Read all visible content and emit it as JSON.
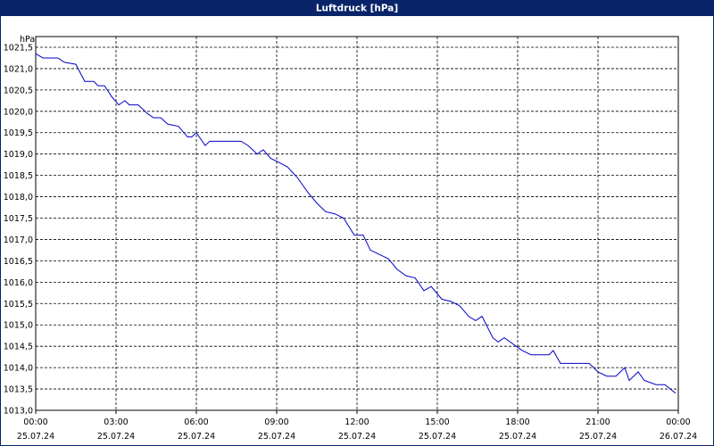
{
  "chart_data": {
    "type": "line",
    "title": "Luftdruck [hPa]",
    "y_label": "hPa",
    "xlim": [
      0,
      24
    ],
    "ylim": [
      1013.0,
      1021.75
    ],
    "grid": true,
    "xticks": [
      {
        "value": 0,
        "label": "00:00"
      },
      {
        "value": 3,
        "label": "03:00"
      },
      {
        "value": 6,
        "label": "06:00"
      },
      {
        "value": 9,
        "label": "09:00"
      },
      {
        "value": 12,
        "label": "12:00"
      },
      {
        "value": 15,
        "label": "15:00"
      },
      {
        "value": 18,
        "label": "18:00"
      },
      {
        "value": 21,
        "label": "21:00"
      },
      {
        "value": 24,
        "label": "00:00"
      }
    ],
    "xtick_dates": [
      "25.07.24",
      "25.07.24",
      "25.07.24",
      "25.07.24",
      "25.07.24",
      "25.07.24",
      "25.07.24",
      "25.07.24",
      "26.07.24"
    ],
    "yticks": [
      {
        "value": 1013.0,
        "label": "1013,0"
      },
      {
        "value": 1013.5,
        "label": "1013,5"
      },
      {
        "value": 1014.0,
        "label": "1014,0"
      },
      {
        "value": 1014.5,
        "label": "1014,5"
      },
      {
        "value": 1015.0,
        "label": "1015,0"
      },
      {
        "value": 1015.5,
        "label": "1015,5"
      },
      {
        "value": 1016.0,
        "label": "1016,0"
      },
      {
        "value": 1016.5,
        "label": "1016,5"
      },
      {
        "value": 1017.0,
        "label": "1017,0"
      },
      {
        "value": 1017.5,
        "label": "1017,5"
      },
      {
        "value": 1018.0,
        "label": "1018,0"
      },
      {
        "value": 1018.5,
        "label": "1018,5"
      },
      {
        "value": 1019.0,
        "label": "1019,0"
      },
      {
        "value": 1019.5,
        "label": "1019,5"
      },
      {
        "value": 1020.0,
        "label": "1020,0"
      },
      {
        "value": 1020.5,
        "label": "1020,5"
      },
      {
        "value": 1021.0,
        "label": "1021,0"
      },
      {
        "value": 1021.5,
        "label": "1021,5"
      }
    ],
    "color": "#0000c8",
    "x": [
      0,
      0.27,
      0.83,
      1.07,
      1.5,
      1.83,
      2.17,
      2.33,
      2.57,
      2.83,
      3.1,
      3.33,
      3.5,
      3.83,
      4.17,
      4.4,
      4.67,
      4.93,
      5.33,
      5.67,
      5.83,
      6.0,
      6.33,
      6.5,
      7.67,
      7.93,
      8.27,
      8.5,
      8.77,
      9.1,
      9.4,
      9.77,
      10.17,
      10.5,
      10.83,
      11.17,
      11.5,
      11.9,
      12.23,
      12.5,
      12.83,
      13.17,
      13.5,
      13.83,
      14.17,
      14.5,
      14.77,
      15.17,
      15.5,
      15.83,
      16.17,
      16.43,
      16.67,
      17.07,
      17.27,
      17.5,
      17.83,
      18.17,
      18.5,
      19.17,
      19.33,
      19.6,
      20.67,
      21.0,
      21.33,
      21.67,
      22.0,
      22.17,
      22.5,
      22.73,
      23.17,
      23.5,
      23.9
    ],
    "values": [
      1021.35,
      1021.25,
      1021.25,
      1021.15,
      1021.1,
      1020.7,
      1020.7,
      1020.6,
      1020.6,
      1020.35,
      1020.15,
      1020.25,
      1020.15,
      1020.15,
      1019.95,
      1019.85,
      1019.85,
      1019.7,
      1019.65,
      1019.4,
      1019.4,
      1019.5,
      1019.2,
      1019.3,
      1019.3,
      1019.2,
      1019.0,
      1019.1,
      1018.9,
      1018.8,
      1018.7,
      1018.45,
      1018.1,
      1017.85,
      1017.65,
      1017.6,
      1017.5,
      1017.1,
      1017.1,
      1016.75,
      1016.65,
      1016.55,
      1016.3,
      1016.15,
      1016.1,
      1015.8,
      1015.9,
      1015.6,
      1015.55,
      1015.45,
      1015.2,
      1015.1,
      1015.2,
      1014.7,
      1014.6,
      1014.7,
      1014.55,
      1014.4,
      1014.3,
      1014.3,
      1014.4,
      1014.1,
      1014.1,
      1013.9,
      1013.8,
      1013.8,
      1014.0,
      1013.7,
      1013.9,
      1013.7,
      1013.6,
      1013.6,
      1013.4
    ]
  }
}
